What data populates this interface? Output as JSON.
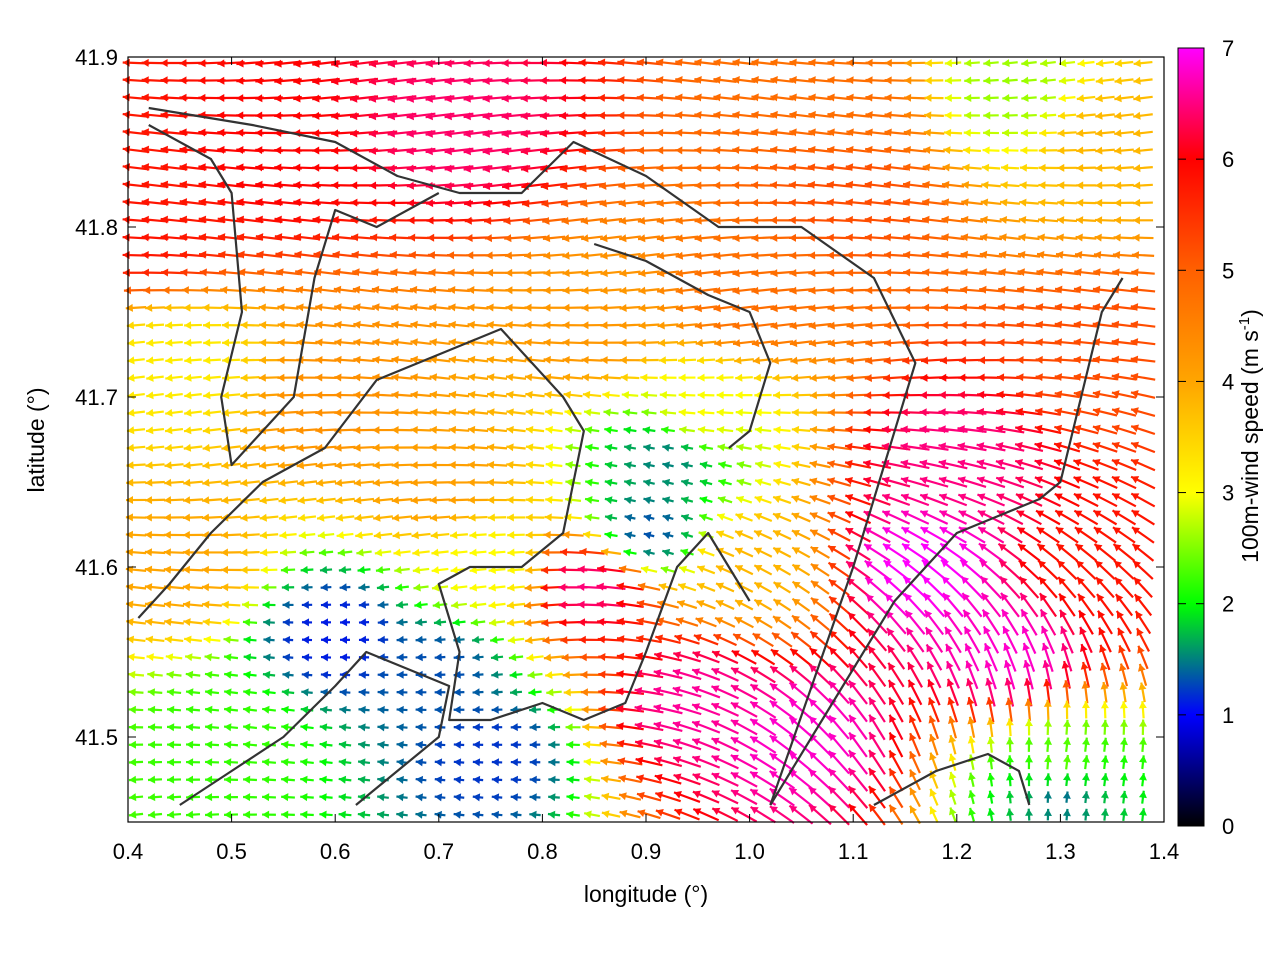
{
  "chart_data": {
    "type": "vector-field",
    "xlabel": "longitude (°)",
    "ylabel": "latitude (°)",
    "colorbar_label_main": "100m-wind speed (m s",
    "colorbar_label_exponent": "-1",
    "colorbar_label_close": ")",
    "xlim": [
      0.4,
      1.4
    ],
    "ylim": [
      41.45,
      41.9
    ],
    "x_ticks": [
      0.4,
      0.5,
      0.6,
      0.7,
      0.8,
      0.9,
      1.0,
      1.1,
      1.2,
      1.3,
      1.4
    ],
    "x_tick_labels": [
      "0.4",
      "0.5",
      "0.6",
      "0.7",
      "0.8",
      "0.9",
      "1.0",
      "1.1",
      "1.2",
      "1.3",
      "1.4"
    ],
    "y_ticks": [
      41.5,
      41.6,
      41.7,
      41.8,
      41.9
    ],
    "y_tick_labels": [
      "41.5",
      "41.6",
      "41.7",
      "41.8",
      "41.9"
    ],
    "colorbar_range": [
      0,
      7
    ],
    "colorbar_ticks": [
      0,
      1,
      2,
      3,
      4,
      5,
      6,
      7
    ],
    "colorbar_tick_labels": [
      "0",
      "1",
      "2",
      "3",
      "4",
      "5",
      "6",
      "7"
    ],
    "colormap": [
      "#000000",
      "#0000ff",
      "#00ff00",
      "#ffff00",
      "#ffa500",
      "#ff6000",
      "#ff0000",
      "#ff00ff"
    ],
    "border_color": "#333333",
    "grid": false,
    "legend": "colorbar-right",
    "speed_centres": [
      {
        "lon": 0.55,
        "lat": 41.84,
        "speed": 6.0
      },
      {
        "lon": 0.72,
        "lat": 41.86,
        "speed": 6.4
      },
      {
        "lon": 0.42,
        "lat": 41.8,
        "speed": 5.8
      },
      {
        "lon": 1.1,
        "lat": 41.82,
        "speed": 5.2
      },
      {
        "lon": 1.0,
        "lat": 41.76,
        "speed": 4.8
      },
      {
        "lon": 0.85,
        "lat": 41.74,
        "speed": 4.2
      },
      {
        "lon": 0.45,
        "lat": 41.72,
        "speed": 3.2
      },
      {
        "lon": 0.6,
        "lat": 41.7,
        "speed": 4.3
      },
      {
        "lon": 0.95,
        "lat": 41.69,
        "speed": 3.0
      },
      {
        "lon": 0.92,
        "lat": 41.665,
        "speed": 1.5
      },
      {
        "lon": 0.9,
        "lat": 41.62,
        "speed": 1.3
      },
      {
        "lon": 0.7,
        "lat": 41.65,
        "speed": 4.1
      },
      {
        "lon": 0.45,
        "lat": 41.6,
        "speed": 4.0
      },
      {
        "lon": 0.6,
        "lat": 41.56,
        "speed": 1.1
      },
      {
        "lon": 0.7,
        "lat": 41.54,
        "speed": 1.3
      },
      {
        "lon": 0.5,
        "lat": 41.5,
        "speed": 2.2
      },
      {
        "lon": 0.75,
        "lat": 41.49,
        "speed": 1.2
      },
      {
        "lon": 0.85,
        "lat": 41.59,
        "speed": 6.5
      },
      {
        "lon": 0.95,
        "lat": 41.52,
        "speed": 6.6
      },
      {
        "lon": 1.05,
        "lat": 41.5,
        "speed": 6.8
      },
      {
        "lon": 1.17,
        "lat": 41.6,
        "speed": 7.0
      },
      {
        "lon": 1.25,
        "lat": 41.55,
        "speed": 6.8
      },
      {
        "lon": 1.2,
        "lat": 41.66,
        "speed": 6.5
      },
      {
        "lon": 1.33,
        "lat": 41.6,
        "speed": 5.8
      },
      {
        "lon": 1.35,
        "lat": 41.72,
        "speed": 5.2
      },
      {
        "lon": 1.3,
        "lat": 41.48,
        "speed": 2.5
      },
      {
        "lon": 1.3,
        "lat": 41.47,
        "speed": 1.3
      },
      {
        "lon": 1.35,
        "lat": 41.85,
        "speed": 3.8
      },
      {
        "lon": 1.25,
        "lat": 41.88,
        "speed": 2.6
      },
      {
        "lon": 1.1,
        "lat": 41.87,
        "speed": 4.8
      },
      {
        "lon": 0.75,
        "lat": 41.6,
        "speed": 3.0
      },
      {
        "lon": 1.0,
        "lat": 41.6,
        "speed": 3.8
      }
    ],
    "borders": [
      [
        [
          0.42,
          41.87
        ],
        [
          0.52,
          41.86
        ],
        [
          0.6,
          41.85
        ],
        [
          0.66,
          41.83
        ],
        [
          0.72,
          41.82
        ],
        [
          0.78,
          41.82
        ],
        [
          0.83,
          41.85
        ],
        [
          0.9,
          41.83
        ],
        [
          0.97,
          41.8
        ],
        [
          1.05,
          41.8
        ],
        [
          1.12,
          41.77
        ],
        [
          1.16,
          41.72
        ],
        [
          1.13,
          41.66
        ],
        [
          1.1,
          41.6
        ],
        [
          1.06,
          41.53
        ],
        [
          1.02,
          41.46
        ]
      ],
      [
        [
          0.42,
          41.86
        ],
        [
          0.48,
          41.84
        ],
        [
          0.5,
          41.82
        ],
        [
          0.51,
          41.75
        ],
        [
          0.49,
          41.7
        ],
        [
          0.5,
          41.66
        ],
        [
          0.53,
          41.68
        ],
        [
          0.56,
          41.7
        ],
        [
          0.58,
          41.77
        ],
        [
          0.6,
          41.81
        ],
        [
          0.64,
          41.8
        ],
        [
          0.7,
          41.82
        ]
      ],
      [
        [
          0.41,
          41.57
        ],
        [
          0.44,
          41.59
        ],
        [
          0.48,
          41.62
        ],
        [
          0.53,
          41.65
        ],
        [
          0.59,
          41.67
        ],
        [
          0.64,
          41.71
        ],
        [
          0.72,
          41.73
        ],
        [
          0.76,
          41.74
        ],
        [
          0.79,
          41.72
        ],
        [
          0.82,
          41.7
        ],
        [
          0.84,
          41.68
        ],
        [
          0.82,
          41.62
        ],
        [
          0.78,
          41.6
        ],
        [
          0.73,
          41.6
        ],
        [
          0.7,
          41.59
        ],
        [
          0.72,
          41.55
        ],
        [
          0.71,
          41.51
        ],
        [
          0.75,
          41.51
        ],
        [
          0.8,
          41.52
        ],
        [
          0.84,
          41.51
        ],
        [
          0.88,
          41.52
        ],
        [
          0.9,
          41.55
        ],
        [
          0.93,
          41.6
        ],
        [
          0.96,
          41.62
        ],
        [
          0.98,
          41.6
        ],
        [
          1.0,
          41.58
        ]
      ],
      [
        [
          0.45,
          41.46
        ],
        [
          0.5,
          41.48
        ],
        [
          0.55,
          41.5
        ],
        [
          0.6,
          41.53
        ],
        [
          0.63,
          41.55
        ],
        [
          0.67,
          41.54
        ],
        [
          0.71,
          41.53
        ],
        [
          0.7,
          41.5
        ],
        [
          0.66,
          41.48
        ],
        [
          0.62,
          41.46
        ]
      ],
      [
        [
          1.02,
          41.46
        ],
        [
          1.08,
          41.52
        ],
        [
          1.14,
          41.58
        ],
        [
          1.2,
          41.62
        ],
        [
          1.24,
          41.63
        ],
        [
          1.28,
          41.64
        ],
        [
          1.3,
          41.65
        ],
        [
          1.32,
          41.7
        ],
        [
          1.34,
          41.75
        ],
        [
          1.36,
          41.77
        ]
      ],
      [
        [
          1.12,
          41.46
        ],
        [
          1.18,
          41.48
        ],
        [
          1.23,
          41.49
        ],
        [
          1.26,
          41.48
        ],
        [
          1.27,
          41.46
        ]
      ],
      [
        [
          0.85,
          41.79
        ],
        [
          0.9,
          41.78
        ],
        [
          0.96,
          41.76
        ],
        [
          1.0,
          41.75
        ],
        [
          1.02,
          41.72
        ],
        [
          1.0,
          41.68
        ],
        [
          0.98,
          41.67
        ]
      ]
    ]
  }
}
